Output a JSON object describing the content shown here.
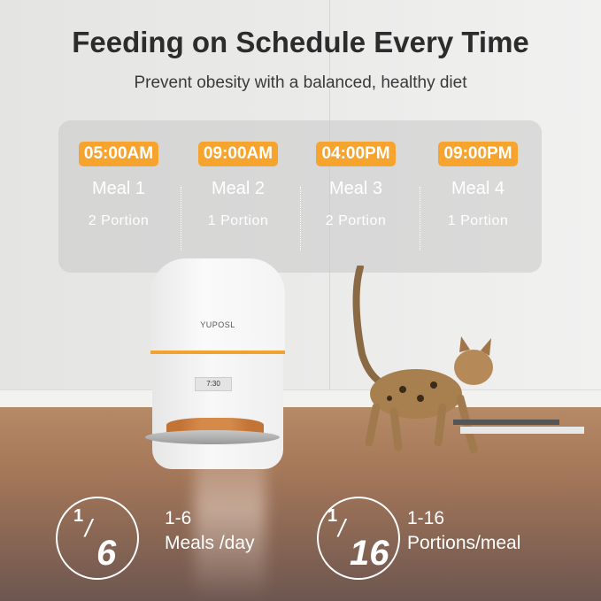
{
  "header": {
    "title": "Feeding on Schedule Every Time",
    "subtitle": "Prevent obesity with a balanced, healthy diet"
  },
  "schedule": [
    {
      "time": "05:00AM",
      "meal": "Meal 1",
      "portion": "2 Portion"
    },
    {
      "time": "09:00AM",
      "meal": "Meal 2",
      "portion": "1 Portion"
    },
    {
      "time": "04:00PM",
      "meal": "Meal 3",
      "portion": "2 Portion"
    },
    {
      "time": "09:00PM",
      "meal": "Meal 4",
      "portion": "1 Portion"
    }
  ],
  "product": {
    "brand": "YUPOSL",
    "display": "7:30"
  },
  "features": [
    {
      "numerator": "1",
      "denominator": "6",
      "range": "1-6",
      "label": "Meals /day"
    },
    {
      "numerator": "1",
      "denominator": "16",
      "range": "1-16",
      "label": "Portions/meal"
    }
  ],
  "colors": {
    "accent": "#f6a42d",
    "title": "#2c2c2c"
  }
}
